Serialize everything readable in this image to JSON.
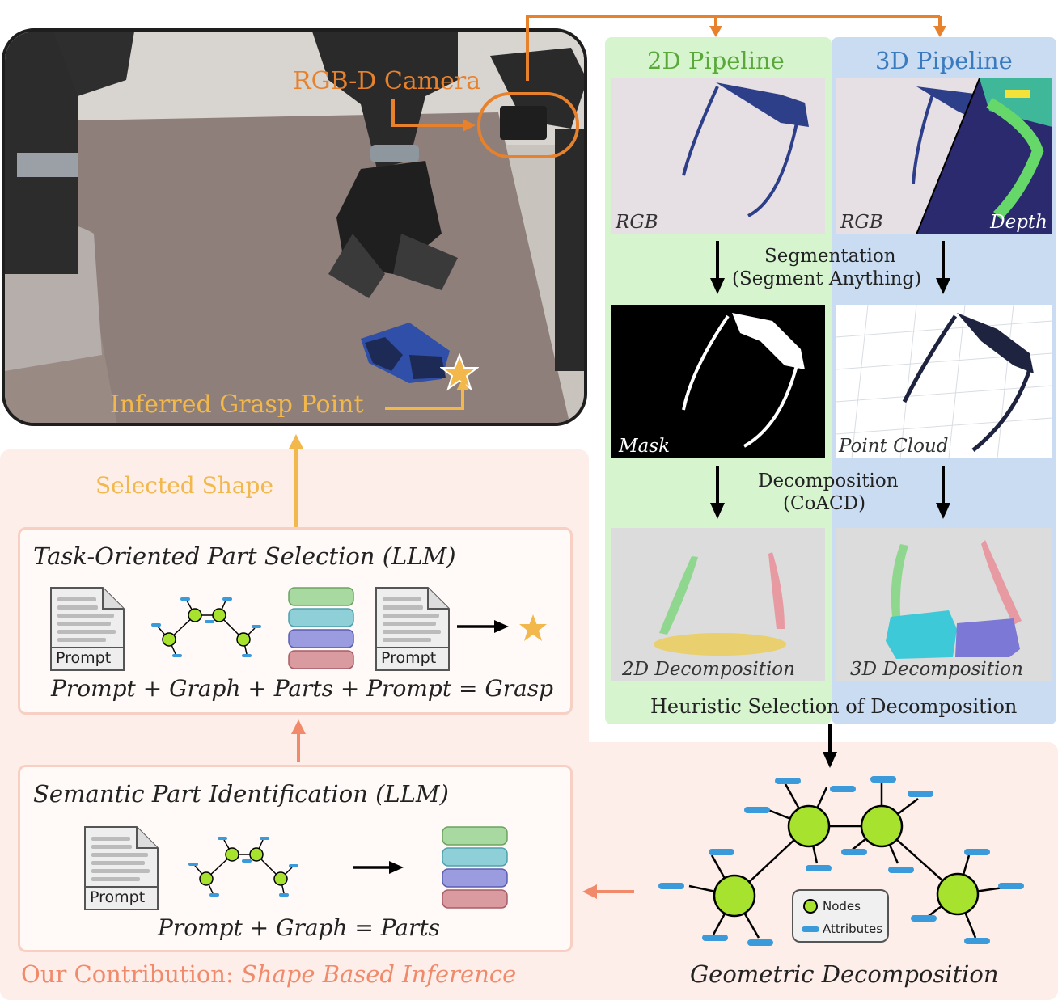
{
  "photo": {
    "camera_label": "RGB-D Camera",
    "grasp_label": "Inferred Grasp Point"
  },
  "pipeline2d": {
    "title": "2D Pipeline",
    "rgb_caption": "RGB",
    "mask_caption": "Mask",
    "decomp_caption": "2D Decomposition"
  },
  "pipeline3d": {
    "title": "3D Pipeline",
    "rgb_caption": "RGB",
    "depth_caption": "Depth",
    "cloud_caption": "Point Cloud",
    "decomp_caption": "3D Decomposition"
  },
  "steps": {
    "segmentation": "Segmentation",
    "segmentation_sub": "(Segment Anything)",
    "decomposition": "Decomposition",
    "decomposition_sub": "(CoACD)",
    "heuristic": "Heuristic Selection of Decomposition"
  },
  "geometric": {
    "title": "Geometric Decomposition",
    "legend_nodes": "Nodes",
    "legend_attributes": "Attributes"
  },
  "contribution": {
    "selected_shape": "Selected Shape",
    "task_title": "Task-Oriented Part Selection (LLM)",
    "task_formula": "Prompt + Graph + Parts + Prompt = Grasp",
    "semantic_title": "Semantic Part Identification (LLM)",
    "semantic_formula": "Prompt + Graph = Parts",
    "prompt_label": "Prompt",
    "footer_prefix": "Our Contribution: ",
    "footer_emphasis": "Shape Based Inference"
  },
  "colors": {
    "orange": "#e8812c",
    "gold": "#f2b84b",
    "salmon": "#f08a6b",
    "green_panel": "#d6f5cf",
    "blue_panel": "#c9dcf2",
    "green_text": "#5aa83a",
    "blue_text": "#3a7abf",
    "node_green": "#a6e22e",
    "attr_blue": "#3b9ad9"
  }
}
